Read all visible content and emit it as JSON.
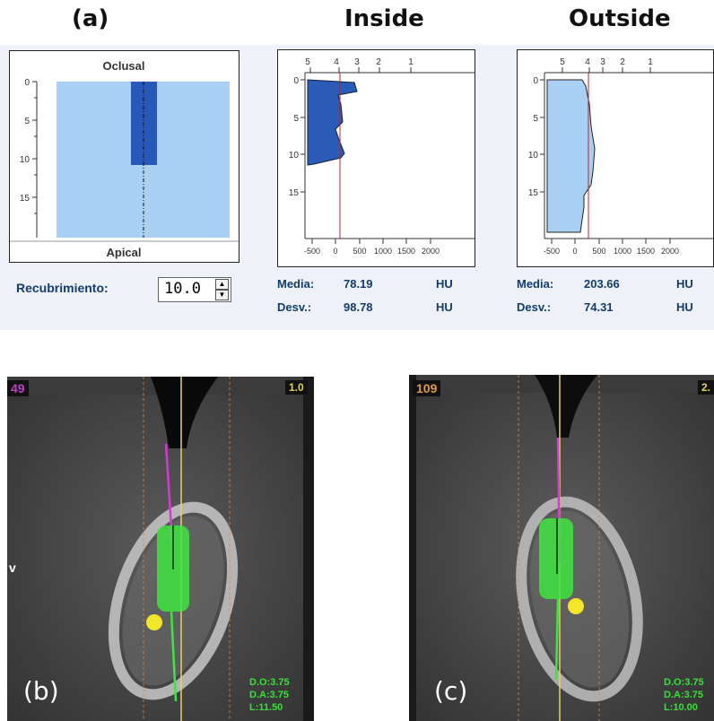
{
  "headers": {
    "a": "(a)",
    "inside": "Inside",
    "outside": "Outside"
  },
  "implant_panel": {
    "top_label": "Oclusal",
    "bottom_label": "Apical",
    "depth_ticks": [
      "0",
      "5",
      "10",
      "15"
    ],
    "colors": {
      "bone": "#a9d0f2",
      "implant": "#2659b8"
    }
  },
  "recubrimiento": {
    "label": "Recubrimiento:",
    "value": "10.0"
  },
  "inside": {
    "top_ticks": [
      "5",
      "4",
      "3",
      "2",
      "1"
    ],
    "depth_ticks": [
      "0",
      "5",
      "10",
      "15"
    ],
    "hu_ticks": [
      "-500",
      "0",
      "500",
      "1000",
      "1500",
      "2000"
    ],
    "media_label": "Media:",
    "media_value": "78.19",
    "media_unit": "HU",
    "desv_label": "Desv.:",
    "desv_value": "98.78",
    "desv_unit": "HU"
  },
  "outside": {
    "top_ticks": [
      "5",
      "4",
      "3",
      "2",
      "1"
    ],
    "depth_ticks": [
      "0",
      "5",
      "10",
      "15"
    ],
    "hu_ticks": [
      "-500",
      "0",
      "500",
      "1000",
      "1500",
      "2000"
    ],
    "media_label": "Media:",
    "media_value": "203.66",
    "media_unit": "HU",
    "desv_label": "Desv.:",
    "desv_value": "74.31",
    "desv_unit": "HU"
  },
  "ct_b": {
    "slice": "49",
    "scale": "1.0",
    "side_label": "v",
    "label": "(b)",
    "measurements": [
      "D.O:3.75",
      "D.A:3.75",
      "L:11.50"
    ],
    "colors": {
      "slice": "#c13fc9",
      "scale": "#e3d34a"
    }
  },
  "ct_c": {
    "slice": "109",
    "scale": "2.",
    "label": "(c)",
    "measurements": [
      "D.O:3.75",
      "D.A:3.75",
      "L:10.00"
    ],
    "colors": {
      "slice": "#e29a3c",
      "scale": "#e3d34a"
    }
  }
}
